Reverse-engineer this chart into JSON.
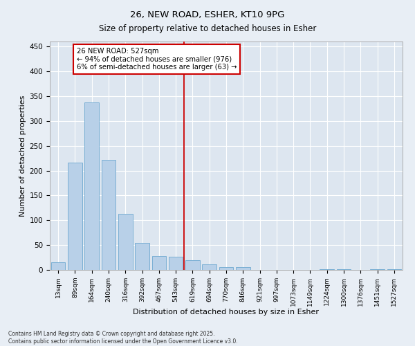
{
  "title": "26, NEW ROAD, ESHER, KT10 9PG",
  "subtitle": "Size of property relative to detached houses in Esher",
  "xlabel": "Distribution of detached houses by size in Esher",
  "ylabel": "Number of detached properties",
  "categories": [
    "13sqm",
    "89sqm",
    "164sqm",
    "240sqm",
    "316sqm",
    "392sqm",
    "467sqm",
    "543sqm",
    "619sqm",
    "694sqm",
    "770sqm",
    "846sqm",
    "921sqm",
    "997sqm",
    "1073sqm",
    "1149sqm",
    "1224sqm",
    "1300sqm",
    "1376sqm",
    "1451sqm",
    "1527sqm"
  ],
  "values": [
    15,
    216,
    338,
    222,
    113,
    55,
    28,
    26,
    19,
    11,
    6,
    6,
    0,
    0,
    0,
    0,
    2,
    1,
    0,
    1,
    1
  ],
  "bar_color": "#b8d0e8",
  "bar_edge_color": "#7aafd4",
  "fig_bg_color": "#e8eef5",
  "ax_bg_color": "#dde6f0",
  "grid_color": "#ffffff",
  "annotation_line1": "26 NEW ROAD: 527sqm",
  "annotation_line2": "← 94% of detached houses are smaller (976)",
  "annotation_line3": "6% of semi-detached houses are larger (63) →",
  "vline_index": 7.5,
  "vline_color": "#cc0000",
  "annotation_box_edge": "#cc0000",
  "ylim": [
    0,
    460
  ],
  "yticks": [
    0,
    50,
    100,
    150,
    200,
    250,
    300,
    350,
    400,
    450
  ],
  "footer_line1": "Contains HM Land Registry data © Crown copyright and database right 2025.",
  "footer_line2": "Contains public sector information licensed under the Open Government Licence v3.0."
}
